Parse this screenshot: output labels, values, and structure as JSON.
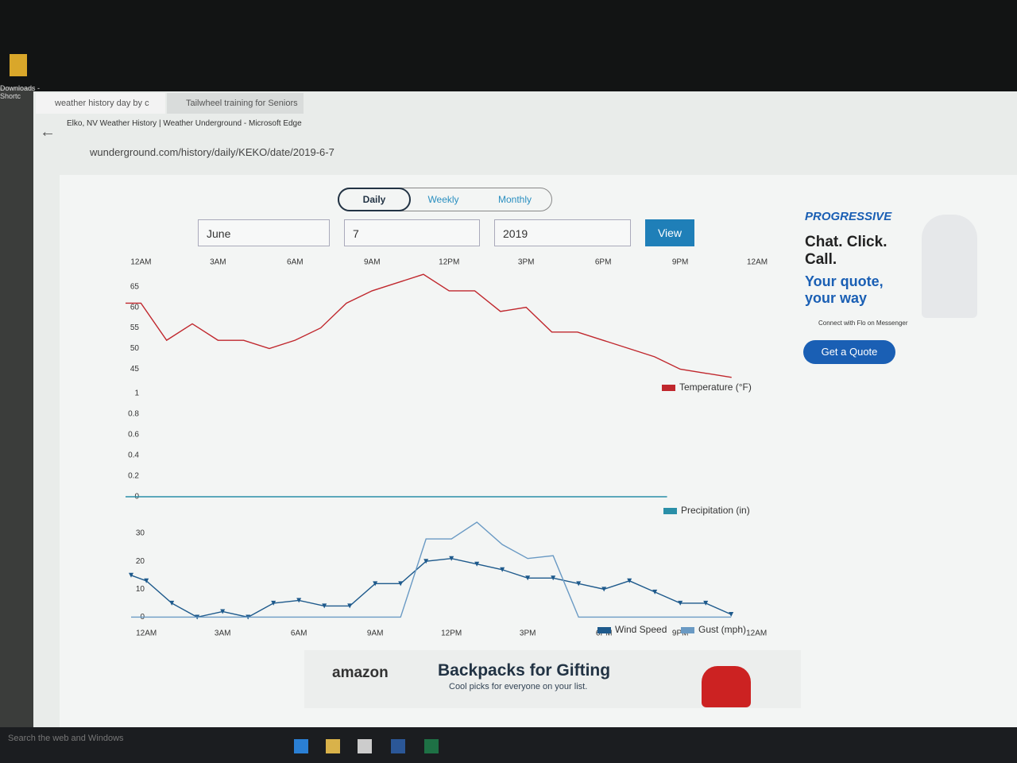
{
  "desktop": {
    "icon_label": "Downloads - Shortc"
  },
  "browser": {
    "tabs": [
      "weather history day by c",
      "Tailwheel training for Seniors"
    ],
    "window_title": "Elko, NV Weather History | Weather Underground - Microsoft Edge",
    "url": "wunderground.com/history/daily/KEKO/date/2019-6-7"
  },
  "page": {
    "view_tabs": [
      "Daily",
      "Weekly",
      "Monthly"
    ],
    "date_inputs": [
      "June",
      "7",
      "2019"
    ],
    "view_button": "View"
  },
  "ad_side": {
    "brand": "PROGRESSIVE",
    "headline": "Chat. Click. Call.",
    "subhead": "Your quote, your way",
    "messenger": "Connect with Flo on Messenger",
    "button": "Get a Quote"
  },
  "ad_bottom": {
    "brand": "amazon",
    "headline": "Backpacks for Gifting",
    "subhead": "Cool picks for everyone on your list."
  },
  "taskbar": {
    "search": "Search the web and Windows"
  },
  "chart_data": [
    {
      "type": "line",
      "x": [
        -0.6,
        0,
        1,
        2,
        3,
        4,
        5,
        6,
        7,
        8,
        9,
        10,
        11,
        12,
        13,
        14,
        15,
        16,
        17,
        18,
        19,
        20,
        21,
        22,
        23
      ],
      "xlim": [
        -0.6,
        24.4
      ],
      "xticks": [
        {
          "value": 0,
          "label": "12AM"
        },
        {
          "value": 3,
          "label": "3AM"
        },
        {
          "value": 6,
          "label": "6AM"
        },
        {
          "value": 9,
          "label": "9AM"
        },
        {
          "value": 12,
          "label": "12PM"
        },
        {
          "value": 15,
          "label": "3PM"
        },
        {
          "value": 18,
          "label": "6PM"
        },
        {
          "value": 21,
          "label": "9PM"
        },
        {
          "value": 24,
          "label": "12AM"
        }
      ],
      "ylim": [
        42,
        69
      ],
      "yticks": [
        45,
        50,
        55,
        60,
        65
      ],
      "series": [
        {
          "name": "Temperature (°F)",
          "color": "#c0272d",
          "values": [
            61,
            61,
            52,
            56,
            52,
            52,
            50,
            52,
            55,
            61,
            64,
            66,
            68,
            64,
            64,
            59,
            60,
            54,
            54,
            52,
            50,
            48,
            45,
            44,
            43
          ]
        }
      ]
    },
    {
      "type": "line",
      "x": [
        -0.6,
        0,
        1,
        2,
        3,
        4,
        5,
        6,
        7,
        8,
        9,
        10,
        11,
        12,
        13,
        14,
        15,
        16,
        17,
        18,
        19,
        20,
        21,
        22,
        23
      ],
      "xlim": [
        -0.6,
        24.4
      ],
      "ylim": [
        0,
        1
      ],
      "yticks": [
        0,
        0.2,
        0.4,
        0.6,
        0.8,
        1
      ],
      "series": [
        {
          "name": "Precipitation (in)",
          "color": "#2a8fa8",
          "values": [
            0,
            0,
            0,
            0,
            0,
            0,
            0,
            0,
            0,
            0,
            0,
            0,
            0,
            0,
            0,
            0,
            0,
            0,
            0,
            0,
            0,
            0,
            0,
            0,
            0
          ]
        }
      ]
    },
    {
      "type": "line",
      "x": [
        -0.6,
        0,
        1,
        2,
        3,
        4,
        5,
        6,
        7,
        8,
        9,
        10,
        11,
        12,
        13,
        14,
        15,
        16,
        17,
        18,
        19,
        20,
        21,
        22,
        23
      ],
      "xlim": [
        -0.6,
        24.4
      ],
      "xticks": [
        {
          "value": 0,
          "label": "12AM"
        },
        {
          "value": 3,
          "label": "3AM"
        },
        {
          "value": 6,
          "label": "6AM"
        },
        {
          "value": 9,
          "label": "9AM"
        },
        {
          "value": 12,
          "label": "12PM"
        },
        {
          "value": 15,
          "label": "3PM"
        },
        {
          "value": 18,
          "label": "6PM"
        },
        {
          "value": 21,
          "label": "9PM"
        },
        {
          "value": 24,
          "label": "12AM"
        }
      ],
      "ylim": [
        -1,
        36
      ],
      "yticks": [
        0,
        10,
        20,
        30
      ],
      "series": [
        {
          "name": "Wind Speed",
          "color": "#1e5a8c",
          "markers": true,
          "values": [
            15,
            13,
            5,
            0,
            2,
            0,
            5,
            6,
            4,
            4,
            12,
            12,
            20,
            21,
            19,
            17,
            14,
            14,
            12,
            10,
            13,
            9,
            5,
            5,
            1
          ]
        },
        {
          "name": "Gust (mph)",
          "color": "#6a9ac4",
          "values": [
            0,
            0,
            0,
            0,
            0,
            0,
            0,
            0,
            0,
            0,
            0,
            0,
            28,
            28,
            34,
            26,
            21,
            22,
            0,
            0,
            0,
            0,
            0,
            0,
            0
          ]
        }
      ]
    }
  ]
}
